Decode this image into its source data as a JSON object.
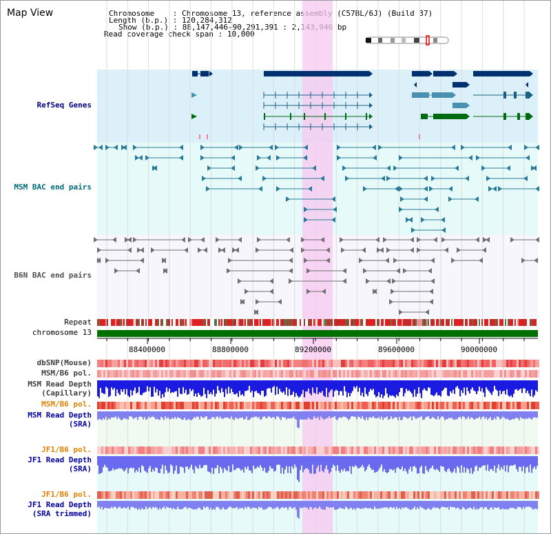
{
  "page": {
    "title": "Map View",
    "info": {
      "chromosome_label": "Chromosome",
      "chromosome_value": "Chromosome 13, reference assembly (C57BL/6J) (Build 37)",
      "length_label": "Length (b.p.)",
      "length_value": "120,284,312",
      "show_label": "Show (b.p.)",
      "show_value": "88,147,446-90,291,391 : 2,143,946 bp",
      "coverage_label": "Read coverage check span",
      "coverage_value": "10,000"
    }
  },
  "tracks": {
    "refseq": {
      "label": "RefSeq Genes",
      "color": "#000080",
      "bg": "#dcf0fa"
    },
    "msm_bac": {
      "label": "MSM BAC end pairs",
      "color": "#006a80",
      "bg": "#e6fafa"
    },
    "b6n_bac": {
      "label": "B6N BAC end pairs",
      "color": "#505050",
      "bg": "#f6f6fc"
    },
    "repeat": {
      "label": "Repeat"
    },
    "chrom": {
      "label": "chromosome 13",
      "color": "#007000"
    },
    "ticks": [
      "88400000",
      "88800000",
      "89200000",
      "89600000",
      "90000000"
    ],
    "dbsnp": {
      "label": "dbSNP(Mouse)"
    },
    "msm_b6_pol_1": {
      "label": "MSM/B6 pol."
    },
    "msm_depth_cap": {
      "label1": "MSM Read Depth",
      "label2": "(Capillary)"
    },
    "msm_b6_pol_2": {
      "label": "MSM/B6 pol."
    },
    "msm_depth_sra": {
      "label1": "MSM Read Depth",
      "label2": "(SRA)"
    },
    "jf1_b6_pol_1": {
      "label": "JF1/B6 pol."
    },
    "jf1_depth_sra": {
      "label1": "JF1 Read Depth",
      "label2": "(SRA)"
    },
    "jf1_b6_pol_2": {
      "label": "JF1/B6 pol."
    },
    "jf1_depth_trim": {
      "label1": "JF1 Read Depth",
      "label2": "(SRA trimmed)"
    }
  },
  "colors": {
    "highlight": "#f7c8f0",
    "orange_label": "#e08000",
    "blue_label": "#0000a0",
    "gray_label": "#404040"
  }
}
